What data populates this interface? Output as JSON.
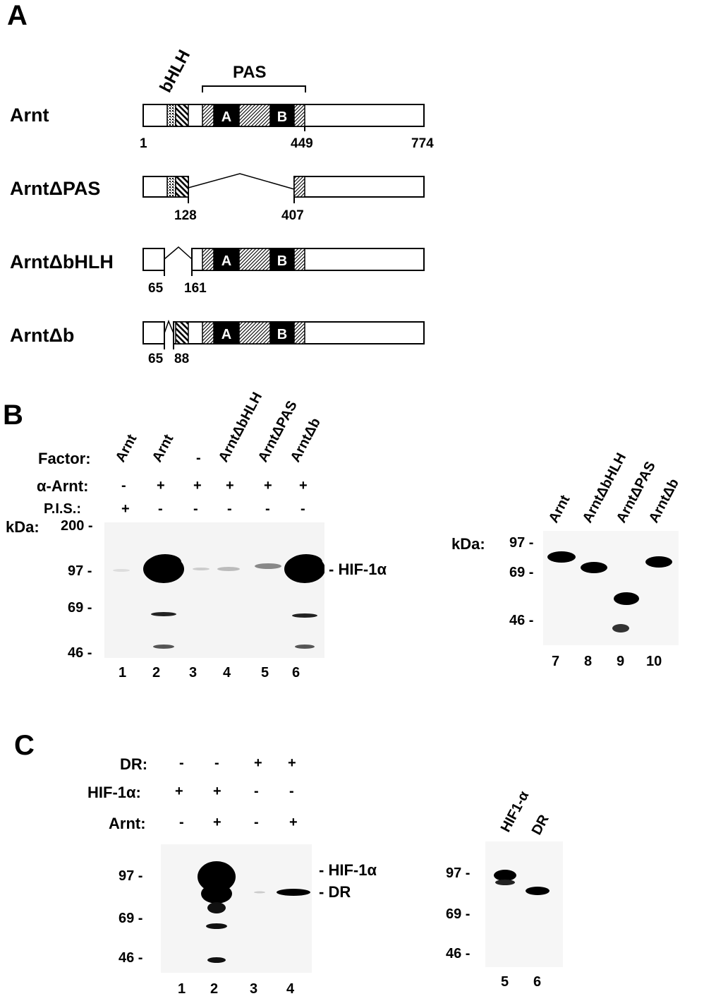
{
  "panel_a": {
    "letter": "A",
    "domain_labels": {
      "bhlh": "bHLH",
      "pas": "PAS"
    },
    "constructs": [
      {
        "name": "Arnt",
        "positions": [
          "1",
          "449",
          "774"
        ],
        "boxes": [
          "A",
          "B"
        ]
      },
      {
        "name": "ArntΔPAS",
        "positions": [
          "128",
          "407"
        ]
      },
      {
        "name": "ArntΔbHLH",
        "positions": [
          "65",
          "161"
        ],
        "boxes": [
          "A",
          "B"
        ]
      },
      {
        "name": "ArntΔb",
        "positions": [
          "65",
          "88"
        ],
        "boxes": [
          "A",
          "B"
        ]
      }
    ]
  },
  "panel_b": {
    "letter": "B",
    "row_labels": {
      "factor": "Factor:",
      "alpha_arnt": "α-Arnt:",
      "pis": "P.I.S.:",
      "kda": "kDa:"
    },
    "factors": [
      "Arnt",
      "Arnt",
      "-",
      "ArntΔbHLH",
      "ArntΔPAS",
      "ArntΔb"
    ],
    "alpha_arnt": [
      "-",
      "+",
      "+",
      "+",
      "+",
      "+"
    ],
    "pis": [
      "+",
      "-",
      "-",
      "-",
      "-",
      "-"
    ],
    "markers": [
      "200 -",
      "97 -",
      "69 -",
      "46 -"
    ],
    "band_label": "- HIF-1α",
    "lanes": [
      "1",
      "2",
      "3",
      "4",
      "5",
      "6"
    ],
    "right": {
      "kda": "kDa:",
      "headers": [
        "Arnt",
        "ArntΔbHLH",
        "ArntΔPAS",
        "ArntΔb"
      ],
      "markers": [
        "97 -",
        "69 -",
        "46 -"
      ],
      "lanes": [
        "7",
        "8",
        "9",
        "10"
      ]
    }
  },
  "panel_c": {
    "letter": "C",
    "row_labels": {
      "dr": "DR:",
      "hif": "HIF-1α:",
      "arnt": "Arnt:"
    },
    "dr": [
      "-",
      "-",
      "+",
      "+"
    ],
    "hif": [
      "+",
      "+",
      "-",
      "-"
    ],
    "arnt": [
      "-",
      "+",
      "-",
      "+"
    ],
    "markers": [
      "97 -",
      "69 -",
      "46 -"
    ],
    "band_labels": [
      "- HIF-1α",
      "- DR"
    ],
    "lanes": [
      "1",
      "2",
      "3",
      "4"
    ],
    "right": {
      "headers": [
        "HIF1-α",
        "DR"
      ],
      "markers": [
        "97 -",
        "69 -",
        "46 -"
      ],
      "lanes": [
        "5",
        "6"
      ]
    }
  }
}
